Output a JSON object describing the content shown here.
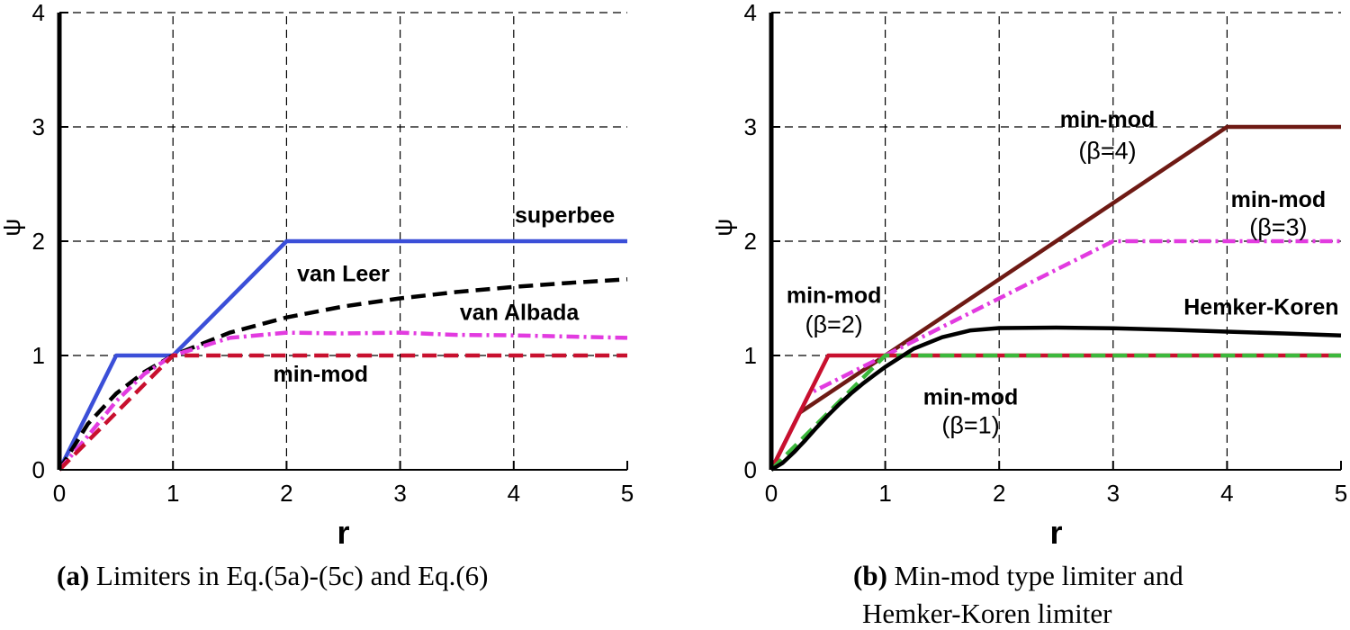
{
  "colors": {
    "grid": "#000000",
    "axis": "#000000"
  },
  "chart_data": [
    {
      "type": "line",
      "xlabel": "r",
      "ylabel": "ψ",
      "xlim": [
        0,
        5
      ],
      "ylim": [
        0,
        4
      ],
      "xticks": [
        "0",
        "1",
        "2",
        "3",
        "4",
        "5"
      ],
      "yticks": [
        "0",
        "1",
        "2",
        "3",
        "4"
      ],
      "grid": true,
      "caption_tag": "(a)",
      "caption_text": " Limiters in Eq.(5a)-(5c) and Eq.(6)",
      "series": [
        {
          "name": "superbee",
          "color": "#3b4fd8",
          "style": "solid",
          "x": [
            0,
            0.5,
            1,
            2,
            5
          ],
          "y": [
            0,
            1,
            1,
            2,
            2
          ]
        },
        {
          "name": "van Leer",
          "color": "#000000",
          "style": "dash",
          "x": [
            0,
            0.25,
            0.5,
            0.75,
            1,
            1.5,
            2,
            2.5,
            3,
            3.5,
            4,
            4.5,
            5
          ],
          "y": [
            0,
            0.4,
            0.667,
            0.857,
            1,
            1.2,
            1.333,
            1.429,
            1.5,
            1.556,
            1.6,
            1.636,
            1.667
          ]
        },
        {
          "name": "van Albada",
          "color": "#e23be0",
          "style": "dashdot",
          "x": [
            0,
            0.25,
            0.5,
            0.75,
            1,
            1.5,
            2,
            2.5,
            3,
            3.5,
            4,
            4.5,
            5
          ],
          "y": [
            0,
            0.294,
            0.6,
            0.84,
            1,
            1.154,
            1.2,
            1.193,
            1.2,
            1.18,
            1.176,
            1.165,
            1.154
          ]
        },
        {
          "name": "min-mod",
          "color": "#c8102e",
          "style": "dash",
          "x": [
            0,
            1,
            5
          ],
          "y": [
            0,
            1,
            1
          ]
        }
      ],
      "annotations": [
        {
          "text": "superbee",
          "x": 4.45,
          "y": 2.16
        },
        {
          "text": "van Leer",
          "x": 2.5,
          "y": 1.65
        },
        {
          "text": "van Albada",
          "x": 4.05,
          "y": 1.31
        },
        {
          "text": "min-mod",
          "x": 2.3,
          "y": 0.77
        }
      ]
    },
    {
      "type": "line",
      "xlabel": "r",
      "ylabel": "ψ",
      "xlim": [
        0,
        5
      ],
      "ylim": [
        0,
        4
      ],
      "xticks": [
        "0",
        "1",
        "2",
        "3",
        "4",
        "5"
      ],
      "yticks": [
        "0",
        "1",
        "2",
        "3",
        "4"
      ],
      "grid": true,
      "caption_tag": "(b)",
      "caption_text": " Min-mod type limiter and",
      "caption_line2": "Hemker-Koren limiter",
      "series": [
        {
          "name": "min-mod (β=4)",
          "color": "#6e1a14",
          "style": "solid",
          "x": [
            0,
            0.25,
            1,
            4,
            5
          ],
          "y": [
            0,
            0.5,
            1,
            3,
            3
          ]
        },
        {
          "name": "min-mod (β=3)",
          "color": "#e23be0",
          "style": "dashdot",
          "x": [
            0,
            0.333,
            1,
            3,
            5
          ],
          "y": [
            0,
            0.667,
            1,
            2,
            2
          ]
        },
        {
          "name": "min-mod (β=2)",
          "color": "#c8102e",
          "style": "solid",
          "x": [
            0,
            0.5,
            1,
            5
          ],
          "y": [
            0,
            1,
            1,
            1
          ]
        },
        {
          "name": "min-mod (β=1)",
          "color": "#3cb83c",
          "style": "dash",
          "x": [
            0,
            1,
            5
          ],
          "y": [
            0,
            1,
            1
          ]
        },
        {
          "name": "Hemker-Koren",
          "color": "#000000",
          "style": "solid",
          "x": [
            0,
            0.1,
            0.2,
            0.3,
            0.4,
            0.5,
            0.6,
            0.7,
            0.8,
            0.9,
            1,
            1.25,
            1.5,
            1.75,
            2,
            2.5,
            3,
            3.5,
            4,
            4.5,
            5
          ],
          "y": [
            0,
            0.061,
            0.154,
            0.261,
            0.372,
            0.478,
            0.577,
            0.668,
            0.751,
            0.826,
            0.9,
            1.06,
            1.16,
            1.22,
            1.24,
            1.244,
            1.238,
            1.225,
            1.209,
            1.193,
            1.175
          ]
        }
      ],
      "annotations": [
        {
          "text": "min-mod",
          "x": 2.95,
          "y": 3.0,
          "bold": true
        },
        {
          "text": "(β=4)",
          "x": 2.95,
          "y": 2.72,
          "bold": false
        },
        {
          "text": "min-mod",
          "x": 4.45,
          "y": 2.3,
          "bold": true
        },
        {
          "text": "(β=3)",
          "x": 4.45,
          "y": 2.05,
          "bold": false
        },
        {
          "text": "min-mod",
          "x": 0.55,
          "y": 1.46,
          "bold": true
        },
        {
          "text": "(β=2)",
          "x": 0.55,
          "y": 1.2,
          "bold": false
        },
        {
          "text": "Hemker-Koren",
          "x": 4.3,
          "y": 1.36,
          "bold": true
        },
        {
          "text": "min-mod",
          "x": 1.75,
          "y": 0.57,
          "bold": true
        },
        {
          "text": "(β=1)",
          "x": 1.75,
          "y": 0.32,
          "bold": false
        }
      ]
    }
  ]
}
